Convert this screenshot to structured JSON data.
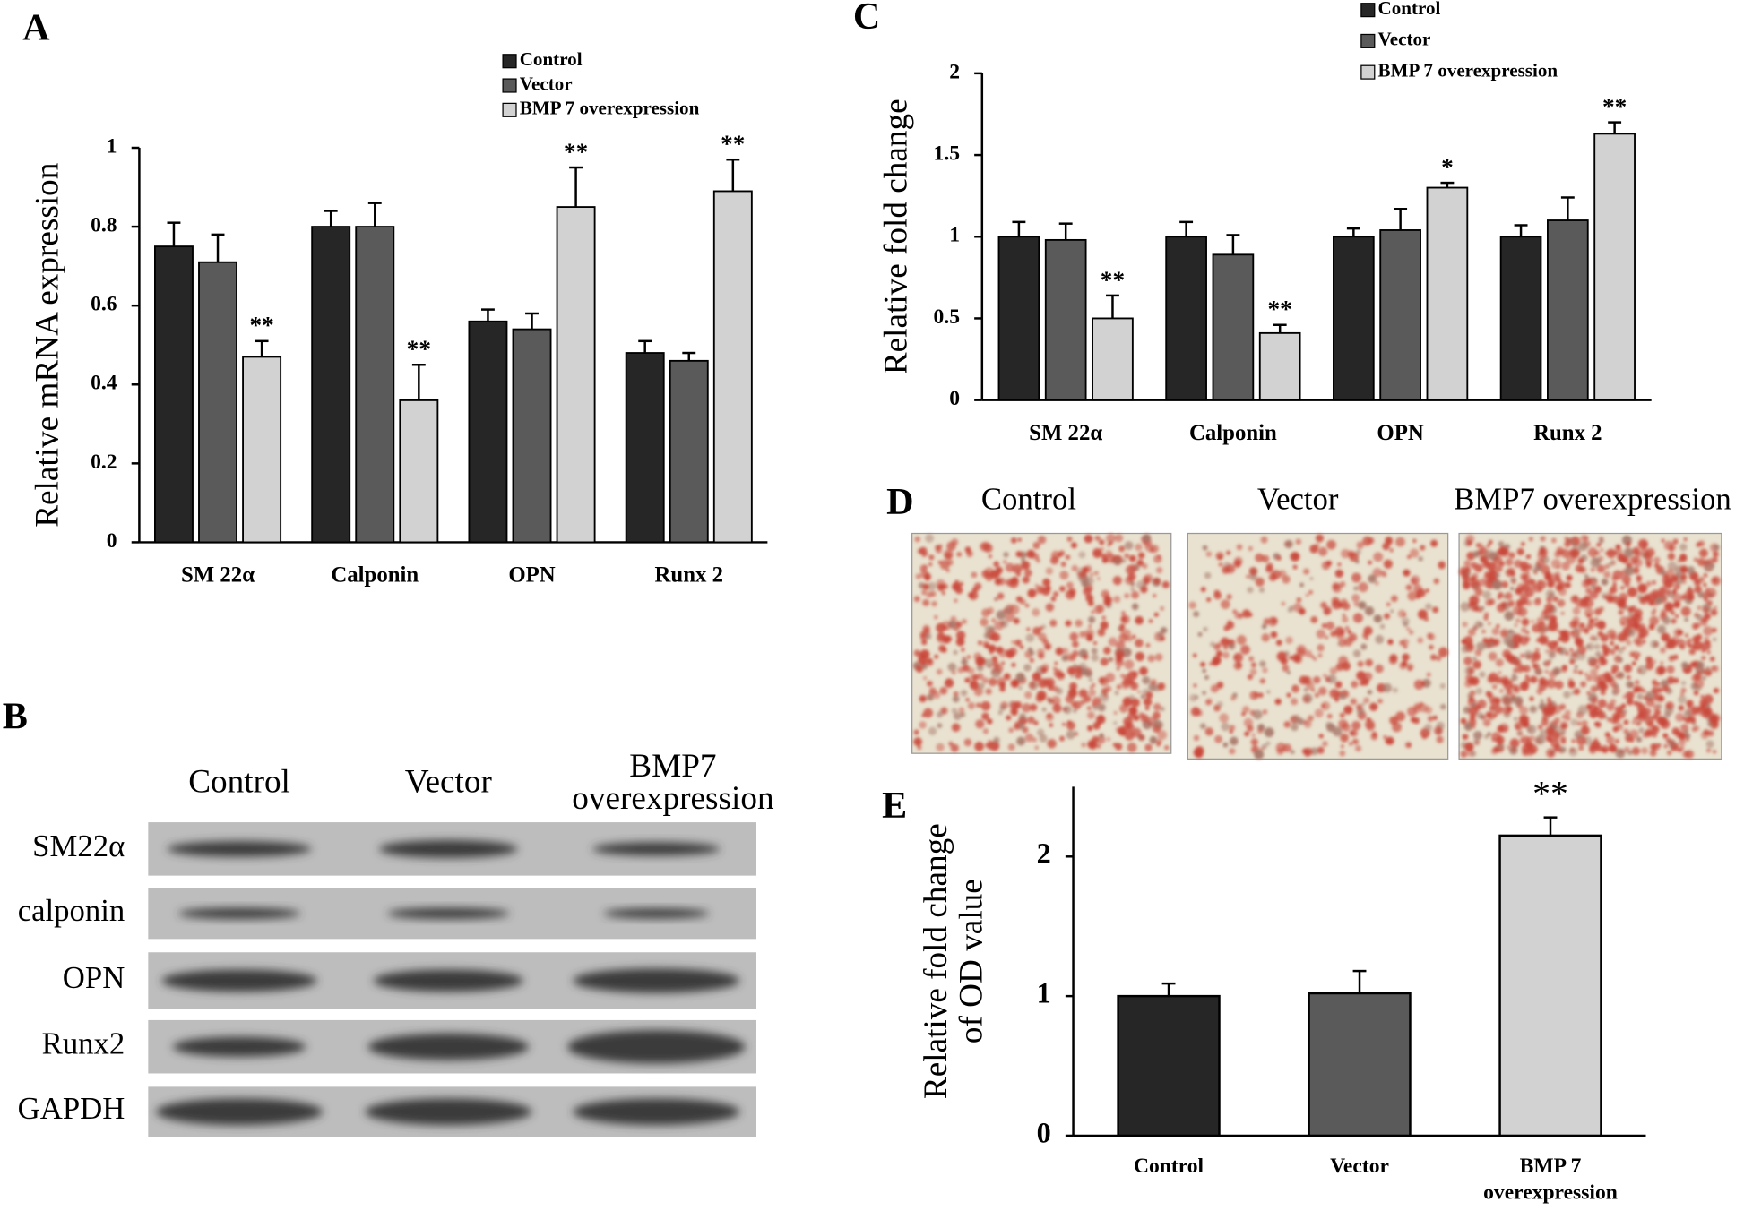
{
  "chart_data": [
    {
      "type": "bar",
      "panel": "A",
      "ylabel": [
        "Relative mRNA expression"
      ],
      "categories": [
        "SM 22α",
        "Calponin",
        "OPN",
        "Runx 2"
      ],
      "series": [
        {
          "name": "Control",
          "color": "#262626",
          "values": [
            0.75,
            0.8,
            0.56,
            0.48
          ],
          "errors": [
            0.06,
            0.04,
            0.03,
            0.03
          ]
        },
        {
          "name": "Vector",
          "color": "#5a5a5a",
          "values": [
            0.71,
            0.8,
            0.54,
            0.46
          ],
          "errors": [
            0.07,
            0.06,
            0.04,
            0.02
          ]
        },
        {
          "name": "BMP 7 overexpression",
          "color": "#d2d2d2",
          "values": [
            0.47,
            0.36,
            0.85,
            0.89
          ],
          "errors": [
            0.04,
            0.09,
            0.1,
            0.08
          ],
          "annotations": [
            "**",
            "**",
            "**",
            "**"
          ]
        }
      ],
      "ylim": [
        0,
        1
      ],
      "yticks": [
        0,
        0.2,
        0.4,
        0.6,
        0.8,
        1
      ]
    },
    {
      "type": "bar",
      "panel": "C",
      "ylabel": [
        "Relative fold change"
      ],
      "categories": [
        "SM 22α",
        "Calponin",
        "OPN",
        "Runx 2"
      ],
      "series": [
        {
          "name": "Control",
          "color": "#262626",
          "values": [
            1.0,
            1.0,
            1.0,
            1.0
          ],
          "errors": [
            0.09,
            0.09,
            0.05,
            0.07
          ]
        },
        {
          "name": "Vector",
          "color": "#5a5a5a",
          "values": [
            0.98,
            0.89,
            1.04,
            1.1
          ],
          "errors": [
            0.1,
            0.12,
            0.13,
            0.14
          ]
        },
        {
          "name": "BMP 7 overexpression",
          "color": "#d2d2d2",
          "values": [
            0.5,
            0.41,
            1.3,
            1.63
          ],
          "errors": [
            0.14,
            0.05,
            0.03,
            0.07
          ],
          "annotations": [
            "**",
            "**",
            "*",
            "**"
          ]
        }
      ],
      "ylim": [
        0,
        2
      ],
      "yticks": [
        0,
        0.5,
        1,
        1.5,
        2
      ]
    },
    {
      "type": "bar",
      "panel": "E",
      "ylabel": [
        "Relative fold change",
        "of OD value"
      ],
      "categories": [
        "Control",
        "Vector",
        "BMP 7 overexpression"
      ],
      "values": [
        1.0,
        1.02,
        2.15
      ],
      "errors": [
        0.09,
        0.16,
        0.13
      ],
      "colors": [
        "#262626",
        "#5a5a5a",
        "#d2d2d2"
      ],
      "annotations": [
        null,
        null,
        "**"
      ],
      "ylim": [
        0,
        2.5
      ],
      "yticks": [
        0,
        1,
        2
      ]
    }
  ],
  "blot": {
    "panel": "B",
    "lanes": [
      "Control",
      "Vector",
      "BMP7 overexpression"
    ],
    "rows": [
      "SM22α",
      "calponin",
      "OPN",
      "Runx2",
      "GAPDH"
    ]
  },
  "stain": {
    "panel": "D",
    "titles": [
      "Control",
      "Vector",
      "BMP7 overexpression"
    ]
  }
}
